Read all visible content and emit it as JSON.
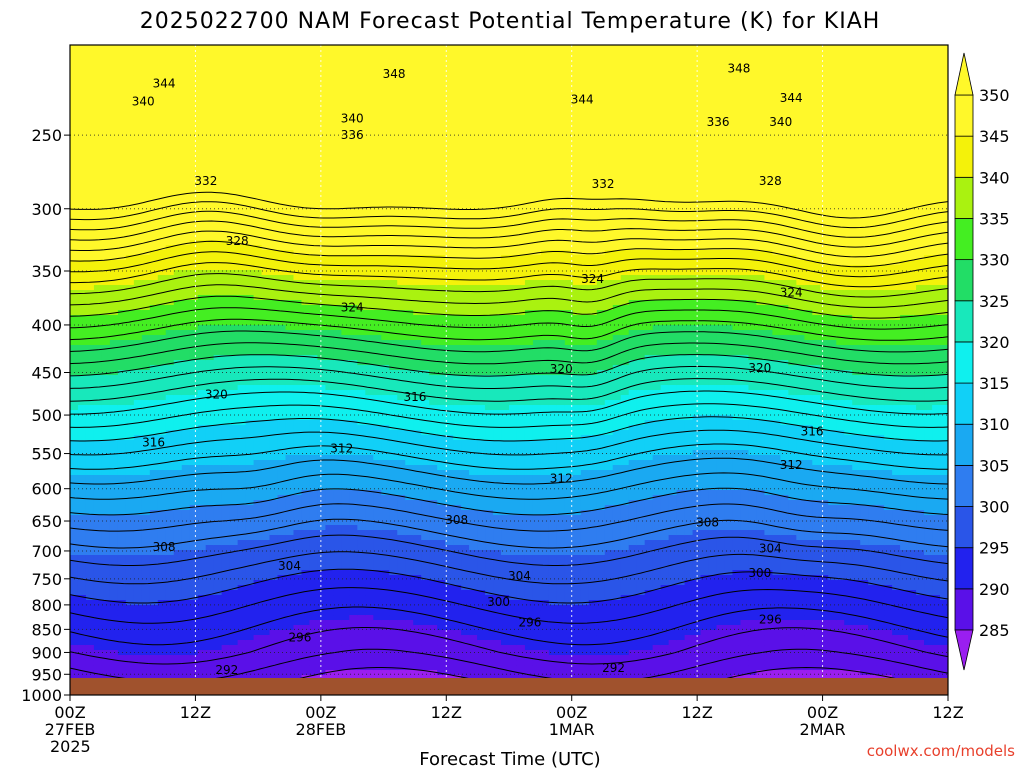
{
  "chart_data": {
    "type": "contour",
    "title": "2025022700 NAM Forecast Potential Temperature (K) for KIAH",
    "xlabel": "Forecast Time (UTC)",
    "ylabel": "",
    "credit": "coolwx.com/models",
    "x_ticks": [
      {
        "hour": 0,
        "lines": [
          "00Z",
          "27FEB",
          "2025"
        ]
      },
      {
        "hour": 12,
        "lines": [
          "12Z"
        ]
      },
      {
        "hour": 24,
        "lines": [
          "00Z",
          "28FEB"
        ]
      },
      {
        "hour": 36,
        "lines": [
          "12Z"
        ]
      },
      {
        "hour": 48,
        "lines": [
          "00Z",
          "1MAR"
        ]
      },
      {
        "hour": 60,
        "lines": [
          "12Z"
        ]
      },
      {
        "hour": 72,
        "lines": [
          "00Z",
          "2MAR"
        ]
      },
      {
        "hour": 84,
        "lines": [
          "12Z"
        ]
      }
    ],
    "xlim": [
      0,
      84
    ],
    "y_ticks": [
      250,
      300,
      350,
      400,
      450,
      500,
      550,
      600,
      650,
      700,
      750,
      800,
      850,
      900,
      950,
      1000
    ],
    "ylim": [
      200,
      1000
    ],
    "y_scale": "log",
    "y_reversed": true,
    "grid": true,
    "colorbar": {
      "levels": [
        285,
        290,
        295,
        300,
        305,
        310,
        315,
        320,
        325,
        330,
        335,
        340,
        345,
        350
      ],
      "colors": [
        "#9a1ef0",
        "#5a10e8",
        "#2222ee",
        "#2a55e8",
        "#2f7df0",
        "#1aa9f2",
        "#11d0f7",
        "#0ff0ee",
        "#18e8bb",
        "#22dd66",
        "#44ee22",
        "#aaf210",
        "#f4f20a",
        "#fff82a"
      ],
      "placement": "right"
    },
    "contour_interval": 2,
    "contour_labels": [
      {
        "hour": 9,
        "p": 220,
        "text": "344"
      },
      {
        "hour": 7,
        "p": 230,
        "text": "340"
      },
      {
        "hour": 31,
        "p": 215,
        "text": "348"
      },
      {
        "hour": 49,
        "p": 229,
        "text": "344"
      },
      {
        "hour": 64,
        "p": 212,
        "text": "348"
      },
      {
        "hour": 69,
        "p": 228,
        "text": "344"
      },
      {
        "hour": 27,
        "p": 240,
        "text": "340"
      },
      {
        "hour": 62,
        "p": 242,
        "text": "336"
      },
      {
        "hour": 68,
        "p": 242,
        "text": "340"
      },
      {
        "hour": 27,
        "p": 250,
        "text": "336"
      },
      {
        "hour": 13,
        "p": 280,
        "text": "332"
      },
      {
        "hour": 51,
        "p": 282,
        "text": "332"
      },
      {
        "hour": 67,
        "p": 280,
        "text": "328"
      },
      {
        "hour": 16,
        "p": 325,
        "text": "328"
      },
      {
        "hour": 50,
        "p": 357,
        "text": "324"
      },
      {
        "hour": 69,
        "p": 369,
        "text": "324"
      },
      {
        "hour": 27,
        "p": 383,
        "text": "324"
      },
      {
        "hour": 47,
        "p": 446,
        "text": "320"
      },
      {
        "hour": 66,
        "p": 445,
        "text": "320"
      },
      {
        "hour": 14,
        "p": 475,
        "text": "320"
      },
      {
        "hour": 33,
        "p": 478,
        "text": "316"
      },
      {
        "hour": 8,
        "p": 535,
        "text": "316"
      },
      {
        "hour": 71,
        "p": 521,
        "text": "316"
      },
      {
        "hour": 26,
        "p": 543,
        "text": "312"
      },
      {
        "hour": 47,
        "p": 585,
        "text": "312"
      },
      {
        "hour": 69,
        "p": 566,
        "text": "312"
      },
      {
        "hour": 37,
        "p": 648,
        "text": "308"
      },
      {
        "hour": 61,
        "p": 652,
        "text": "308"
      },
      {
        "hour": 9,
        "p": 693,
        "text": "308"
      },
      {
        "hour": 67,
        "p": 696,
        "text": "304"
      },
      {
        "hour": 21,
        "p": 727,
        "text": "304"
      },
      {
        "hour": 43,
        "p": 745,
        "text": "304"
      },
      {
        "hour": 66,
        "p": 739,
        "text": "300"
      },
      {
        "hour": 41,
        "p": 794,
        "text": "300"
      },
      {
        "hour": 22,
        "p": 867,
        "text": "296"
      },
      {
        "hour": 44,
        "p": 836,
        "text": "296"
      },
      {
        "hour": 67,
        "p": 830,
        "text": "296"
      },
      {
        "hour": 15,
        "p": 940,
        "text": "292"
      },
      {
        "hour": 52,
        "p": 935,
        "text": "292"
      }
    ]
  }
}
